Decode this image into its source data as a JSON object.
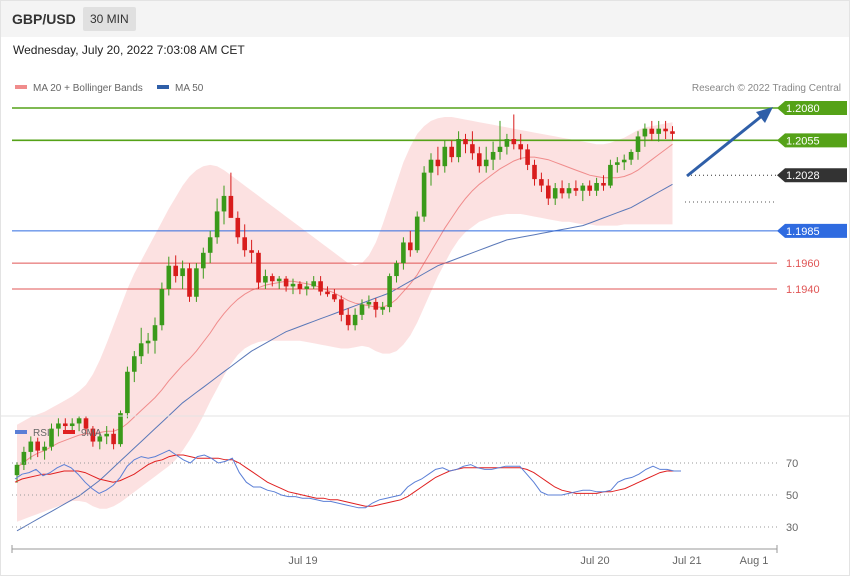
{
  "header": {
    "symbol": "GBP/USD",
    "timeframe": "30 MIN",
    "timestamp": "Wednesday, July 20, 2022 7:03:08 AM CET"
  },
  "legend": [
    {
      "label": "MA 20 + Bollinger Bands",
      "color": "#f08c8c"
    },
    {
      "label": "MA 50",
      "color": "#2f5fa8"
    }
  ],
  "credit": "Research © 2022 Trading Central",
  "rsi_legend": [
    {
      "label": "RSI",
      "color": "#5b7fd6"
    },
    {
      "label": "9MA",
      "color": "#e02020"
    }
  ],
  "colors": {
    "bull": "#3a9a1a",
    "bear": "#d81c1c",
    "resistance": "#55a218",
    "support_key": "#2f6be0",
    "support": "#e05555",
    "current": "#333333",
    "band_fill": "#fbdada",
    "ma20": "#f08c8c",
    "ma50": "#5a78b8",
    "arrow": "#2f5fa8"
  },
  "chart_data": [
    {
      "type": "candlestick",
      "title": "GBP/USD",
      "ylim": [
        1.1725,
        1.211
      ],
      "x_ticks": [
        "Jul 19",
        "Jul 20",
        "Jul 21",
        "Aug 1"
      ],
      "levels": [
        {
          "value": 1.208,
          "label": "1.2080",
          "role": "resistance"
        },
        {
          "value": 1.2055,
          "label": "1.2055",
          "role": "resistance"
        },
        {
          "value": 1.2028,
          "label": "1.2028",
          "role": "current"
        },
        {
          "value": 1.1985,
          "label": "1.1985",
          "role": "support_key"
        },
        {
          "value": 1.196,
          "label": "1.1960",
          "role": "support"
        },
        {
          "value": 1.194,
          "label": "1.1940",
          "role": "support"
        }
      ],
      "candles": [
        [
          1.1796,
          1.1806,
          1.179,
          1.1804
        ],
        [
          1.1804,
          1.1818,
          1.18,
          1.1814
        ],
        [
          1.1814,
          1.1826,
          1.1808,
          1.1822
        ],
        [
          1.1822,
          1.1825,
          1.181,
          1.1815
        ],
        [
          1.1815,
          1.1822,
          1.1808,
          1.1818
        ],
        [
          1.1818,
          1.1836,
          1.1815,
          1.1832
        ],
        [
          1.1832,
          1.184,
          1.1826,
          1.1836
        ],
        [
          1.1836,
          1.184,
          1.183,
          1.1834
        ],
        [
          1.1834,
          1.184,
          1.1828,
          1.1836
        ],
        [
          1.1836,
          1.1842,
          1.183,
          1.184
        ],
        [
          1.184,
          1.1842,
          1.1828,
          1.1832
        ],
        [
          1.1832,
          1.1834,
          1.1818,
          1.1822
        ],
        [
          1.1822,
          1.1828,
          1.1816,
          1.1826
        ],
        [
          1.1826,
          1.1834,
          1.182,
          1.1828
        ],
        [
          1.1828,
          1.1832,
          1.1816,
          1.182
        ],
        [
          1.182,
          1.1846,
          1.1818,
          1.1844
        ],
        [
          1.1844,
          1.188,
          1.184,
          1.1876
        ],
        [
          1.1876,
          1.1892,
          1.1868,
          1.1888
        ],
        [
          1.1888,
          1.191,
          1.1882,
          1.1898
        ],
        [
          1.1898,
          1.1906,
          1.189,
          1.19
        ],
        [
          1.19,
          1.1918,
          1.189,
          1.1912
        ],
        [
          1.1912,
          1.1945,
          1.1908,
          1.194
        ],
        [
          1.194,
          1.1965,
          1.1935,
          1.1958
        ],
        [
          1.1958,
          1.1966,
          1.1945,
          1.195
        ],
        [
          1.195,
          1.1962,
          1.194,
          1.1956
        ],
        [
          1.1956,
          1.196,
          1.193,
          1.1934
        ],
        [
          1.1934,
          1.196,
          1.193,
          1.1956
        ],
        [
          1.1956,
          1.1972,
          1.1948,
          1.1968
        ],
        [
          1.1968,
          1.1985,
          1.196,
          1.198
        ],
        [
          1.198,
          1.201,
          1.1975,
          1.2
        ],
        [
          1.2,
          1.202,
          1.199,
          1.2012
        ],
        [
          1.2012,
          1.203,
          1.1998,
          1.1995
        ],
        [
          1.1995,
          1.2,
          1.1975,
          1.198
        ],
        [
          1.198,
          1.199,
          1.1965,
          1.197
        ],
        [
          1.197,
          1.1978,
          1.196,
          1.1968
        ],
        [
          1.1968,
          1.197,
          1.194,
          1.1945
        ],
        [
          1.1945,
          1.1955,
          1.194,
          1.195
        ],
        [
          1.195,
          1.1952,
          1.1942,
          1.1946
        ],
        [
          1.1946,
          1.195,
          1.194,
          1.1948
        ],
        [
          1.1948,
          1.195,
          1.1938,
          1.1942
        ],
        [
          1.1942,
          1.1948,
          1.1936,
          1.1944
        ],
        [
          1.1944,
          1.1946,
          1.1936,
          1.194
        ],
        [
          1.194,
          1.1946,
          1.1935,
          1.1942
        ],
        [
          1.1942,
          1.195,
          1.194,
          1.1946
        ],
        [
          1.1946,
          1.195,
          1.1935,
          1.1938
        ],
        [
          1.1938,
          1.1942,
          1.1934,
          1.1936
        ],
        [
          1.1936,
          1.194,
          1.193,
          1.1932
        ],
        [
          1.1932,
          1.1935,
          1.1915,
          1.192
        ],
        [
          1.192,
          1.1925,
          1.1908,
          1.1912
        ],
        [
          1.1912,
          1.1925,
          1.1908,
          1.192
        ],
        [
          1.192,
          1.1932,
          1.1916,
          1.1928
        ],
        [
          1.1928,
          1.1935,
          1.1925,
          1.193
        ],
        [
          1.193,
          1.1933,
          1.1918,
          1.1924
        ],
        [
          1.1924,
          1.193,
          1.192,
          1.1926
        ],
        [
          1.1926,
          1.1952,
          1.1922,
          1.195
        ],
        [
          1.195,
          1.1962,
          1.1945,
          1.196
        ],
        [
          1.196,
          1.198,
          1.1955,
          1.1976
        ],
        [
          1.1976,
          1.1985,
          1.1965,
          1.197
        ],
        [
          1.197,
          1.2,
          1.1968,
          1.1996
        ],
        [
          1.1996,
          1.2035,
          1.1992,
          1.203
        ],
        [
          1.203,
          1.2045,
          1.202,
          1.204
        ],
        [
          1.204,
          1.205,
          1.2028,
          1.2035
        ],
        [
          1.2035,
          1.2055,
          1.203,
          1.205
        ],
        [
          1.205,
          1.2055,
          1.2038,
          1.2042
        ],
        [
          1.2042,
          1.2062,
          1.2038,
          1.2056
        ],
        [
          1.2056,
          1.206,
          1.2045,
          1.2052
        ],
        [
          1.2052,
          1.2062,
          1.204,
          1.2045
        ],
        [
          1.2045,
          1.205,
          1.203,
          1.2035
        ],
        [
          1.2035,
          1.205,
          1.203,
          1.204
        ],
        [
          1.204,
          1.2054,
          1.2032,
          1.2046
        ],
        [
          1.2046,
          1.207,
          1.204,
          1.205
        ],
        [
          1.205,
          1.206,
          1.2044,
          1.2056
        ],
        [
          1.2056,
          1.2075,
          1.2048,
          1.2052
        ],
        [
          1.2052,
          1.206,
          1.204,
          1.2048
        ],
        [
          1.2048,
          1.2052,
          1.2032,
          1.2036
        ],
        [
          1.2036,
          1.204,
          1.202,
          1.2025
        ],
        [
          1.2025,
          1.203,
          1.2015,
          1.202
        ],
        [
          1.202,
          1.2025,
          1.2005,
          1.201
        ],
        [
          1.201,
          1.2022,
          1.2005,
          1.2018
        ],
        [
          1.2018,
          1.2024,
          1.201,
          1.2014
        ],
        [
          1.2014,
          1.2022,
          1.201,
          1.2018
        ],
        [
          1.2018,
          1.2024,
          1.2012,
          1.2016
        ],
        [
          1.2016,
          1.2022,
          1.2008,
          1.202
        ],
        [
          1.202,
          1.2024,
          1.2012,
          1.2016
        ],
        [
          1.2016,
          1.2026,
          1.2012,
          1.2022
        ],
        [
          1.2022,
          1.2028,
          1.2016,
          1.202
        ],
        [
          1.202,
          1.204,
          1.2018,
          1.2036
        ],
        [
          1.2036,
          1.2042,
          1.203,
          1.2038
        ],
        [
          1.2038,
          1.2044,
          1.2032,
          1.204
        ],
        [
          1.204,
          1.2048,
          1.2036,
          1.2046
        ],
        [
          1.2046,
          1.2062,
          1.204,
          1.2058
        ],
        [
          1.2058,
          1.2068,
          1.205,
          1.2064
        ],
        [
          1.2064,
          1.207,
          1.2055,
          1.206
        ],
        [
          1.206,
          1.207,
          1.2054,
          1.2064
        ],
        [
          1.2064,
          1.207,
          1.2056,
          1.2062
        ],
        [
          1.2062,
          1.2066,
          1.2055,
          1.206
        ]
      ],
      "ma20": [
        1.1802,
        1.1806,
        1.181,
        1.1813,
        1.1815,
        1.1818,
        1.1821,
        1.1823,
        1.1825,
        1.1827,
        1.1828,
        1.1828,
        1.1829,
        1.183,
        1.183,
        1.1832,
        1.1836,
        1.1841,
        1.1846,
        1.1851,
        1.1856,
        1.1862,
        1.1869,
        1.1875,
        1.1881,
        1.1886,
        1.1892,
        1.1899,
        1.1906,
        1.1914,
        1.1921,
        1.1927,
        1.1932,
        1.1936,
        1.1939,
        1.1941,
        1.1943,
        1.1944,
        1.1945,
        1.1946,
        1.1946,
        1.1945,
        1.1944,
        1.1943,
        1.1941,
        1.1939,
        1.1937,
        1.1934,
        1.1931,
        1.1929,
        1.1928,
        1.1927,
        1.1926,
        1.1926,
        1.1928,
        1.1932,
        1.1938,
        1.1944,
        1.1951,
        1.196,
        1.1969,
        1.1978,
        1.1987,
        1.1995,
        1.2003,
        1.201,
        1.2016,
        1.2021,
        1.2025,
        1.2029,
        1.2033,
        1.2036,
        1.2039,
        1.2041,
        1.2042,
        1.2042,
        1.2041,
        1.204,
        1.2038,
        1.2036,
        1.2034,
        1.2032,
        1.203,
        1.2028,
        1.2027,
        1.2026,
        1.2026,
        1.2026,
        1.2027,
        1.2029,
        1.2032,
        1.2036,
        1.204,
        1.2044,
        1.2048,
        1.2052
      ],
      "band_upper": [
        1.1835,
        1.1838,
        1.1841,
        1.1843,
        1.1845,
        1.1848,
        1.1851,
        1.1854,
        1.1857,
        1.1861,
        1.1866,
        1.1874,
        1.1885,
        1.1898,
        1.1912,
        1.1926,
        1.194,
        1.1952,
        1.1962,
        1.1972,
        1.1982,
        1.1992,
        1.2002,
        1.2011,
        1.202,
        1.2027,
        1.2032,
        1.2035,
        1.2036,
        1.2035,
        1.2032,
        1.2028,
        1.2024,
        1.202,
        1.2016,
        1.2012,
        1.2008,
        1.2004,
        1.2,
        1.1996,
        1.1992,
        1.1988,
        1.1984,
        1.198,
        1.1976,
        1.1972,
        1.1968,
        1.1964,
        1.196,
        1.1958,
        1.196,
        1.1966,
        1.1976,
        1.199,
        1.2006,
        1.2022,
        1.2038,
        1.205,
        1.206,
        1.2066,
        1.207,
        1.2072,
        1.2073,
        1.2073,
        1.2072,
        1.2071,
        1.207,
        1.2069,
        1.2068,
        1.2067,
        1.2066,
        1.2065,
        1.2064,
        1.2063,
        1.2062,
        1.2061,
        1.206,
        1.2059,
        1.2058,
        1.2057,
        1.2056,
        1.2055,
        1.2054,
        1.2053,
        1.2052,
        1.2052,
        1.2053,
        1.2055,
        1.2057,
        1.206,
        1.2063,
        1.2065,
        1.2066,
        1.2067,
        1.2068,
        1.2069
      ],
      "band_lower": [
        1.176,
        1.1762,
        1.1764,
        1.1766,
        1.1768,
        1.177,
        1.1772,
        1.1774,
        1.1776,
        1.1776,
        1.1775,
        1.1772,
        1.177,
        1.177,
        1.1772,
        1.1775,
        1.1779,
        1.1783,
        1.1787,
        1.1791,
        1.1795,
        1.1799,
        1.1803,
        1.1808,
        1.1815,
        1.1823,
        1.1832,
        1.1842,
        1.1853,
        1.1863,
        1.1873,
        1.1882,
        1.1889,
        1.1894,
        1.1897,
        1.1899,
        1.19,
        1.19,
        1.19,
        1.19,
        1.19,
        1.19,
        1.1899,
        1.1898,
        1.1897,
        1.1896,
        1.1895,
        1.1894,
        1.1894,
        1.1895,
        1.1896,
        1.1895,
        1.1892,
        1.189,
        1.189,
        1.1892,
        1.1897,
        1.1904,
        1.1914,
        1.1926,
        1.1938,
        1.195,
        1.196,
        1.197,
        1.1978,
        1.1984,
        1.1988,
        1.1992,
        1.1994,
        1.1996,
        1.1997,
        1.1998,
        1.1998,
        1.1998,
        1.1997,
        1.1996,
        1.1995,
        1.1994,
        1.1993,
        1.1992,
        1.1992,
        1.1991,
        1.199,
        1.199,
        1.1989,
        1.1989,
        1.1989,
        1.1989,
        1.199,
        1.199,
        1.199,
        1.199,
        1.199,
        1.199,
        1.199,
        1.199
      ],
      "ma50": [
        1.1753,
        1.1756,
        1.1759,
        1.1762,
        1.1765,
        1.1768,
        1.1771,
        1.1774,
        1.1777,
        1.178,
        1.1784,
        1.1788,
        1.1792,
        1.1797,
        1.1802,
        1.1807,
        1.1812,
        1.1817,
        1.1822,
        1.1827,
        1.1832,
        1.1837,
        1.1842,
        1.1847,
        1.1852,
        1.1856,
        1.186,
        1.1864,
        1.1868,
        1.1872,
        1.1876,
        1.188,
        1.1884,
        1.1888,
        1.1892,
        1.1895,
        1.1898,
        1.1901,
        1.1904,
        1.1907,
        1.1909,
        1.1911,
        1.1913,
        1.1915,
        1.1917,
        1.1919,
        1.1921,
        1.1923,
        1.1925,
        1.1927,
        1.1929,
        1.1931,
        1.1933,
        1.1935,
        1.1937,
        1.194,
        1.1943,
        1.1946,
        1.1949,
        1.1952,
        1.1955,
        1.1958,
        1.196,
        1.1962,
        1.1964,
        1.1966,
        1.1968,
        1.197,
        1.1972,
        1.1974,
        1.1976,
        1.1978,
        1.1979,
        1.198,
        1.1981,
        1.1982,
        1.1983,
        1.1984,
        1.1985,
        1.1986,
        1.1987,
        1.1988,
        1.1989,
        1.1991,
        1.1993,
        1.1995,
        1.1997,
        1.1999,
        1.2001,
        1.2003,
        1.2006,
        1.2009,
        1.2012,
        1.2015,
        1.2018,
        1.2021
      ]
    },
    {
      "type": "line",
      "ylim": [
        20,
        80
      ],
      "y_ticks": [
        70,
        50,
        30
      ],
      "series": [
        {
          "name": "RSI",
          "values": [
            60,
            63,
            64,
            66,
            62,
            64,
            67,
            69,
            67,
            63,
            58,
            54,
            51,
            53,
            56,
            61,
            68,
            72,
            74,
            73,
            74,
            76,
            78,
            75,
            72,
            70,
            74,
            75,
            73,
            70,
            71,
            73,
            64,
            58,
            55,
            55,
            53,
            52,
            50,
            49,
            49,
            48,
            48,
            47,
            46,
            46,
            45,
            44,
            43,
            42,
            42,
            45,
            47,
            48,
            49,
            50,
            55,
            58,
            60,
            63,
            66,
            67,
            65,
            66,
            68,
            69,
            67,
            66,
            66,
            67,
            68,
            68,
            68,
            63,
            58,
            52,
            50,
            50,
            50,
            51,
            52,
            53,
            53,
            52,
            52,
            53,
            58,
            60,
            61,
            63,
            66,
            68,
            66,
            66,
            65,
            65
          ]
        },
        {
          "name": "9MA",
          "values": [
            58,
            60,
            61,
            62,
            63,
            63,
            64,
            65,
            65,
            65,
            64,
            62,
            60,
            59,
            58,
            59,
            61,
            63,
            66,
            69,
            71,
            72,
            74,
            75,
            75,
            74,
            73,
            73,
            73,
            73,
            72,
            72,
            70,
            67,
            64,
            61,
            58,
            56,
            54,
            52,
            51,
            50,
            49,
            48,
            48,
            47,
            47,
            46,
            45,
            44,
            43,
            43,
            44,
            45,
            46,
            47,
            49,
            52,
            55,
            58,
            61,
            63,
            65,
            66,
            67,
            67,
            67,
            67,
            67,
            67,
            67,
            67,
            67,
            66,
            64,
            61,
            58,
            55,
            53,
            52,
            51,
            51,
            51,
            51,
            52,
            52,
            53,
            54,
            56,
            58,
            60,
            62,
            64,
            65,
            65,
            65
          ]
        }
      ]
    }
  ]
}
